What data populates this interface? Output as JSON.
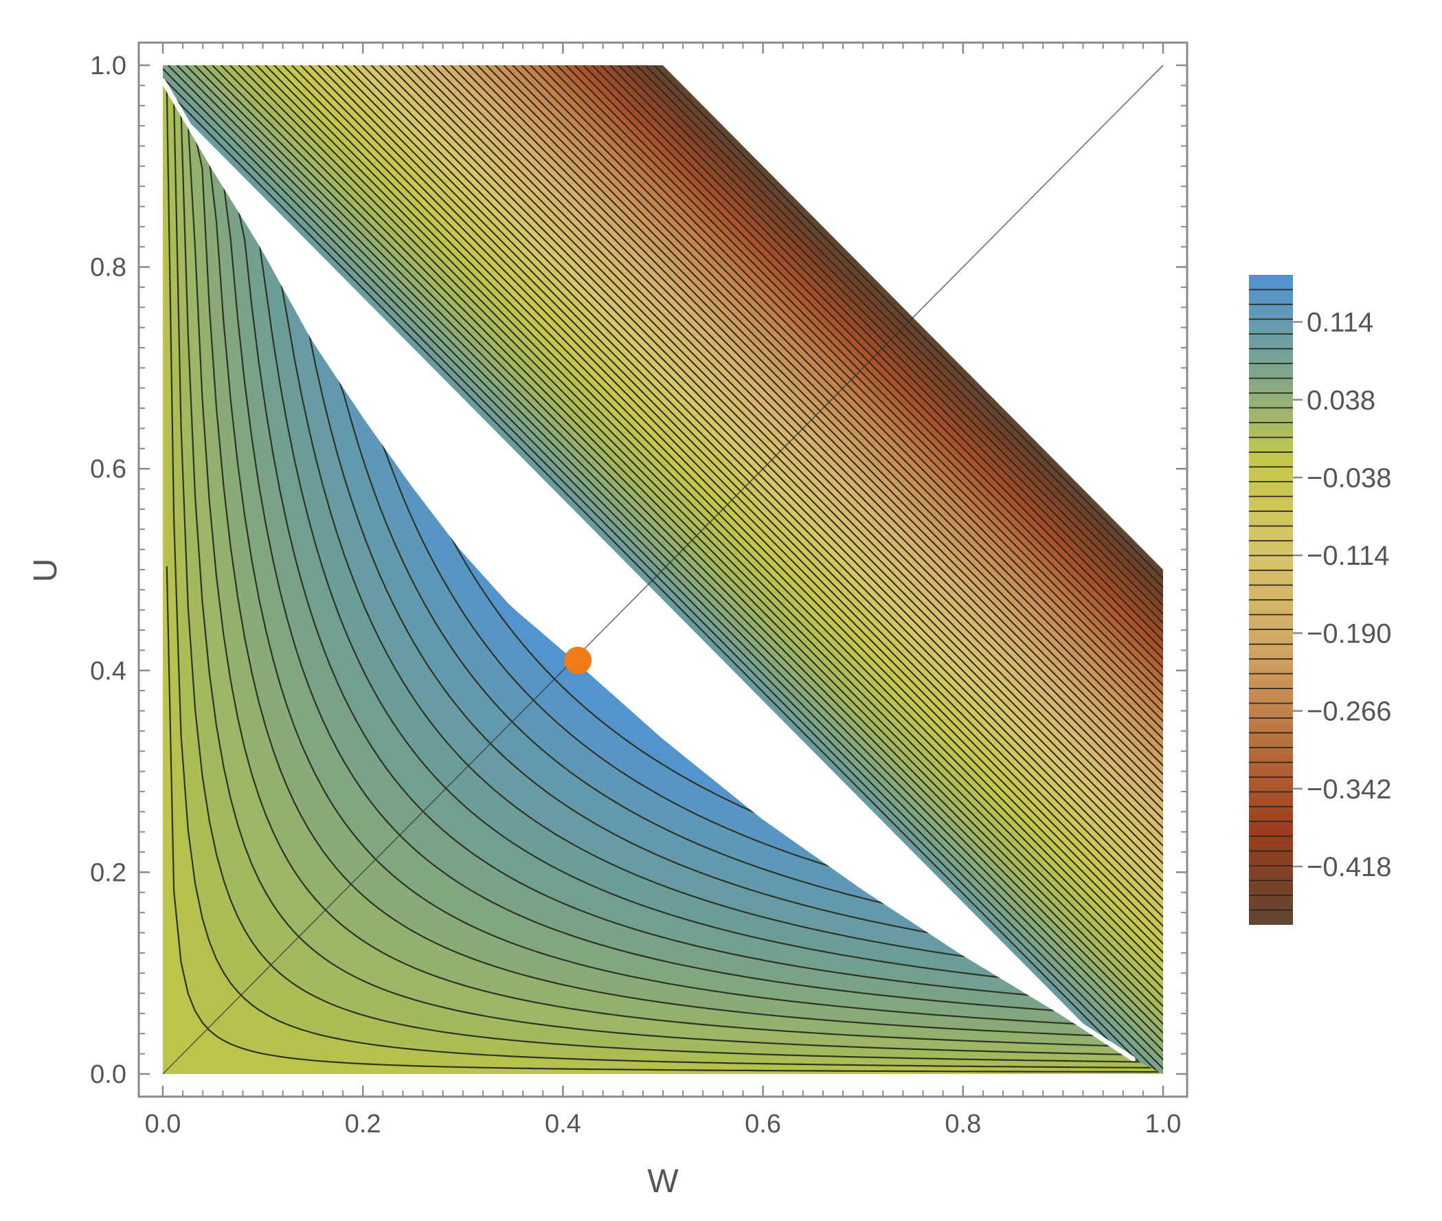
{
  "chart_data": {
    "type": "contour",
    "title": "",
    "xlabel": "W",
    "ylabel": "U",
    "xlim": [
      0,
      1
    ],
    "ylim": [
      0,
      1
    ],
    "x_ticks": [
      "0.0",
      "0.2",
      "0.4",
      "0.6",
      "0.8",
      "1.0"
    ],
    "y_ticks": [
      "0.0",
      "0.2",
      "0.4",
      "0.6",
      "0.8",
      "1.0"
    ],
    "x_tick_values": [
      0,
      0.2,
      0.4,
      0.6,
      0.8,
      1.0
    ],
    "y_tick_values": [
      0,
      0.2,
      0.4,
      0.6,
      0.8,
      1.0
    ],
    "domain": "0 ≤ W ≤ 1, 0 ≤ U ≤ 1, U + W ≤ 1.5",
    "boundary_curve": {
      "description": "white boundary curve from (0,1) to (1,0) through the optimum",
      "points": [
        [
          0.0,
          0.985
        ],
        [
          0.05,
          0.9
        ],
        [
          0.1,
          0.82
        ],
        [
          0.15,
          0.73
        ],
        [
          0.2,
          0.655
        ],
        [
          0.25,
          0.585
        ],
        [
          0.3,
          0.52
        ],
        [
          0.35,
          0.465
        ],
        [
          0.415,
          0.41
        ],
        [
          0.5,
          0.335
        ],
        [
          0.6,
          0.255
        ],
        [
          0.7,
          0.185
        ],
        [
          0.8,
          0.12
        ],
        [
          0.9,
          0.06
        ],
        [
          0.97,
          0.015
        ]
      ]
    },
    "diagonal_line": {
      "from": [
        0,
        0
      ],
      "to": [
        1,
        1
      ]
    },
    "highlight_point": {
      "x": 0.415,
      "y": 0.41,
      "color": "#f07c17"
    },
    "colorbar": {
      "ticks": [
        "0.114",
        "0.038",
        "−0.038",
        "−0.114",
        "−0.190",
        "−0.266",
        "−0.342",
        "−0.418"
      ],
      "tick_values": [
        0.114,
        0.038,
        -0.038,
        -0.114,
        -0.19,
        -0.266,
        -0.342,
        -0.418
      ],
      "range": [
        -0.475,
        0.16
      ],
      "colors": [
        "#4f92d6",
        "#7ba38f",
        "#c4c84a",
        "#d6c46a",
        "#d2a766",
        "#b9723f",
        "#9c3d1d",
        "#5e4631"
      ]
    }
  }
}
